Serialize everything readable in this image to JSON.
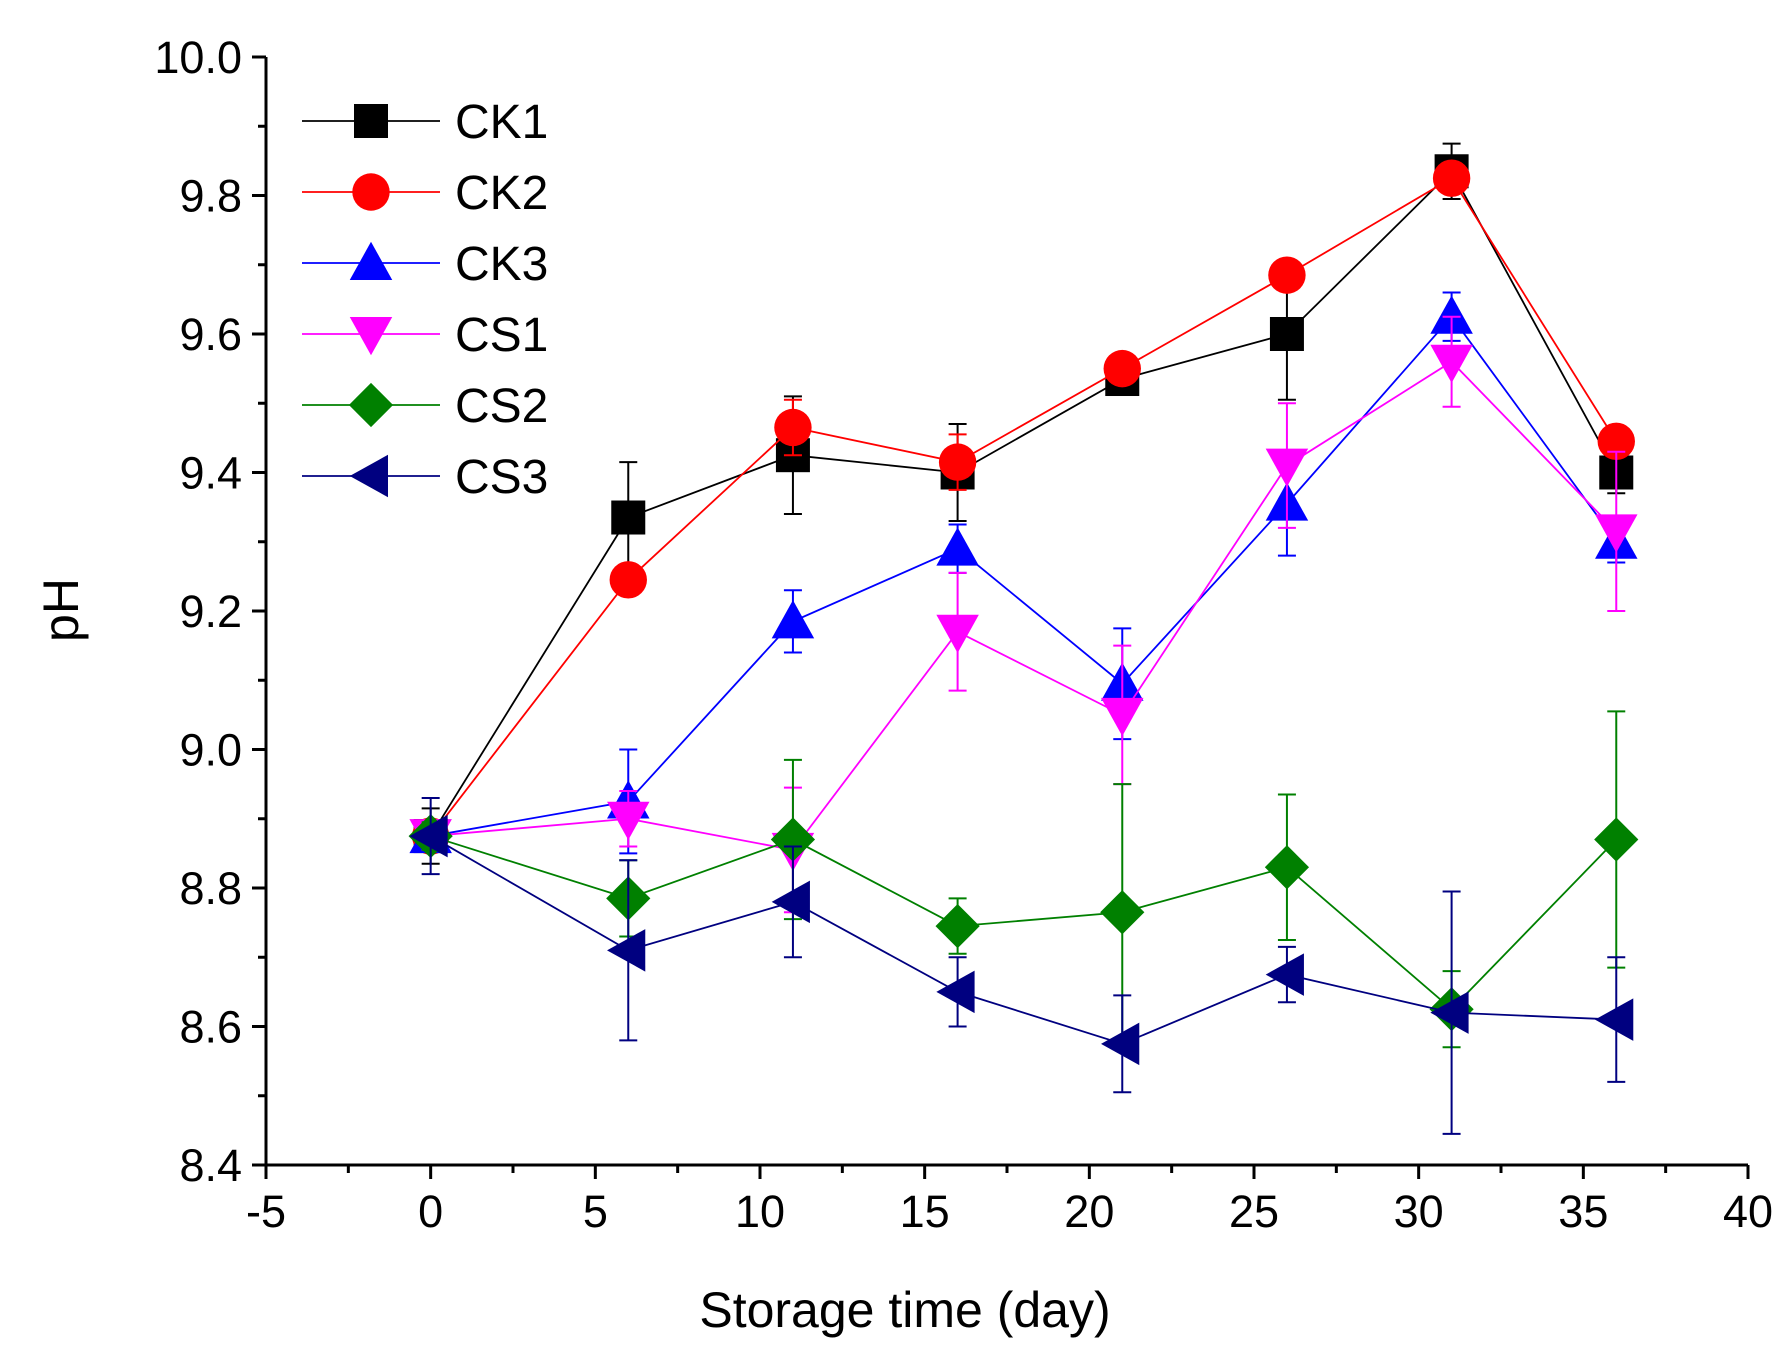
{
  "chart_data": {
    "type": "line",
    "title": "",
    "xlabel": "Storage time (day)",
    "ylabel": "pH",
    "xlim": [
      -5,
      40
    ],
    "ylim": [
      8.4,
      10.0
    ],
    "xticks": [
      -5,
      0,
      5,
      10,
      15,
      20,
      25,
      30,
      35,
      40
    ],
    "xtick_labels": [
      "-5",
      "0",
      "5",
      "10",
      "15",
      "20",
      "25",
      "30",
      "35",
      "40"
    ],
    "yticks": [
      8.4,
      8.6,
      8.8,
      9.0,
      9.2,
      9.4,
      9.6,
      9.8,
      10.0
    ],
    "ytick_labels": [
      "8.4",
      "8.6",
      "8.8",
      "9.0",
      "9.2",
      "9.4",
      "9.6",
      "9.8",
      "10.0"
    ],
    "grid": false,
    "legend_position": "top-left",
    "x": [
      0,
      6,
      11,
      16,
      21,
      26,
      31,
      36
    ],
    "series": [
      {
        "name": "CK1",
        "color": "#000000",
        "marker": "square",
        "values": [
          8.875,
          9.335,
          9.425,
          9.4,
          9.535,
          9.6,
          9.835,
          9.4
        ],
        "errors": [
          0.04,
          0.08,
          0.085,
          0.07,
          0.015,
          0.095,
          0.04,
          0.03
        ]
      },
      {
        "name": "CK2",
        "color": "#ff0000",
        "marker": "circle",
        "values": [
          8.875,
          9.245,
          9.465,
          9.415,
          9.55,
          9.685,
          9.825,
          9.445
        ],
        "errors": [
          0.02,
          0.02,
          0.04,
          0.04,
          0.02,
          0.02,
          0.02,
          0.02
        ]
      },
      {
        "name": "CK3",
        "color": "#0000ff",
        "marker": "triangle-up",
        "values": [
          8.875,
          8.925,
          9.185,
          9.29,
          9.095,
          9.355,
          9.625,
          9.3
        ],
        "errors": [
          0.02,
          0.075,
          0.045,
          0.035,
          0.08,
          0.075,
          0.035,
          0.03
        ]
      },
      {
        "name": "CS1",
        "color": "#ff00ff",
        "marker": "triangle-down",
        "values": [
          8.875,
          8.9,
          8.855,
          9.17,
          9.05,
          9.41,
          9.56,
          9.315
        ],
        "errors": [
          0.02,
          0.04,
          0.09,
          0.085,
          0.1,
          0.09,
          0.065,
          0.115
        ]
      },
      {
        "name": "CS2",
        "color": "#008000",
        "marker": "diamond",
        "values": [
          8.875,
          8.785,
          8.87,
          8.745,
          8.765,
          8.83,
          8.625,
          8.87
        ],
        "errors": [
          0.02,
          0.055,
          0.115,
          0.04,
          0.185,
          0.105,
          0.055,
          0.185
        ]
      },
      {
        "name": "CS3",
        "color": "#000080",
        "marker": "triangle-left",
        "values": [
          8.875,
          8.71,
          8.78,
          8.65,
          8.575,
          8.675,
          8.62,
          8.61
        ],
        "errors": [
          0.055,
          0.13,
          0.08,
          0.05,
          0.07,
          0.04,
          0.175,
          0.09
        ]
      }
    ]
  }
}
